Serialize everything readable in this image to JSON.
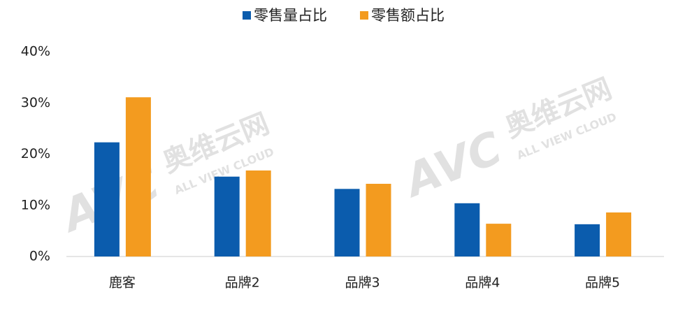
{
  "chart_data": {
    "type": "bar",
    "categories": [
      "鹿客",
      "品牌2",
      "品牌3",
      "品牌4",
      "品牌5"
    ],
    "series": [
      {
        "name": "零售量占比",
        "color": "#0b5cad",
        "values": [
          22.3,
          15.6,
          13.2,
          10.4,
          6.3
        ]
      },
      {
        "name": "零售额占比",
        "color": "#f39b1f",
        "values": [
          31.1,
          16.8,
          14.2,
          6.4,
          8.6
        ]
      }
    ],
    "ylim": [
      0,
      40
    ],
    "yticks": [
      {
        "value": 0,
        "label": "0%"
      },
      {
        "value": 10,
        "label": "10%"
      },
      {
        "value": 20,
        "label": "20%"
      },
      {
        "value": 30,
        "label": "30%"
      },
      {
        "value": 40,
        "label": "40%"
      }
    ],
    "legend": "top",
    "watermark": [
      "AVC",
      "奥维云网",
      "ALL VIEW CLOUD"
    ]
  }
}
